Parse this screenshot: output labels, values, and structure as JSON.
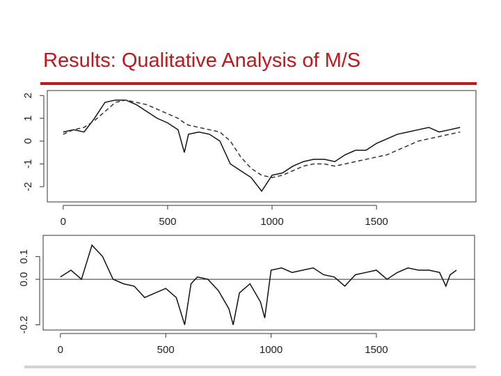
{
  "title": "Results: Qualitative Analysis of M/S",
  "chart_data": [
    {
      "type": "line",
      "x": [
        0,
        50,
        100,
        150,
        200,
        250,
        300,
        350,
        400,
        450,
        500,
        550,
        580,
        600,
        650,
        700,
        750,
        800,
        850,
        900,
        950,
        1000,
        1050,
        1100,
        1150,
        1200,
        1250,
        1300,
        1350,
        1400,
        1450,
        1500,
        1550,
        1600,
        1650,
        1700,
        1750,
        1800,
        1850,
        1900
      ],
      "series": [
        {
          "color": "#111111",
          "style": "solid",
          "values": [
            0.4,
            0.5,
            0.4,
            1.0,
            1.7,
            1.8,
            1.8,
            1.6,
            1.3,
            1.0,
            0.8,
            0.5,
            -0.5,
            0.3,
            0.4,
            0.3,
            0.0,
            -1.0,
            -1.3,
            -1.6,
            -2.2,
            -1.5,
            -1.4,
            -1.1,
            -0.9,
            -0.8,
            -0.8,
            -0.9,
            -0.6,
            -0.4,
            -0.4,
            -0.1,
            0.1,
            0.3,
            0.4,
            0.5,
            0.6,
            0.4,
            0.5,
            0.6
          ]
        },
        {
          "color": "#333333",
          "style": "dashed",
          "values": [
            0.3,
            0.5,
            0.6,
            0.9,
            1.3,
            1.7,
            1.8,
            1.7,
            1.6,
            1.4,
            1.2,
            1.0,
            0.8,
            0.7,
            0.6,
            0.5,
            0.4,
            0.0,
            -0.7,
            -1.2,
            -1.5,
            -1.6,
            -1.5,
            -1.3,
            -1.1,
            -1.0,
            -1.0,
            -1.1,
            -1.0,
            -0.9,
            -0.8,
            -0.7,
            -0.6,
            -0.4,
            -0.2,
            0.0,
            0.1,
            0.2,
            0.3,
            0.4
          ]
        }
      ],
      "xlim": [
        -76,
        1976
      ],
      "xticks": [
        0,
        500,
        1000,
        1500
      ],
      "ylim": [
        -2.67,
        2.22
      ],
      "yticks": [
        -2,
        -1,
        0,
        1,
        2
      ]
    },
    {
      "type": "line",
      "x": [
        0,
        50,
        100,
        150,
        200,
        250,
        300,
        350,
        400,
        450,
        500,
        550,
        590,
        620,
        650,
        700,
        750,
        800,
        820,
        850,
        900,
        950,
        970,
        1000,
        1050,
        1100,
        1150,
        1200,
        1250,
        1300,
        1350,
        1400,
        1450,
        1500,
        1550,
        1600,
        1650,
        1700,
        1750,
        1800,
        1830,
        1850,
        1880
      ],
      "series": [
        {
          "color": "#111111",
          "style": "solid",
          "values": [
            0.01,
            0.04,
            0.0,
            0.15,
            0.1,
            0.0,
            -0.02,
            -0.03,
            -0.08,
            -0.06,
            -0.04,
            -0.08,
            -0.2,
            -0.02,
            0.01,
            0.0,
            -0.05,
            -0.13,
            -0.2,
            -0.06,
            -0.02,
            -0.1,
            -0.17,
            0.04,
            0.05,
            0.03,
            0.04,
            0.05,
            0.02,
            0.01,
            -0.03,
            0.02,
            0.03,
            0.04,
            0.0,
            0.03,
            0.05,
            0.04,
            0.04,
            0.03,
            -0.03,
            0.02,
            0.04
          ]
        }
      ],
      "reference_line": 0,
      "xlim": [
        -82,
        1966
      ],
      "xticks": [
        0,
        500,
        1000,
        1500
      ],
      "ylim": [
        -0.223,
        0.193
      ],
      "yticks": [
        {
          "value": -0.2,
          "label": "-0.2"
        },
        {
          "value": 0,
          "label": "0.0"
        },
        {
          "value": 0.1,
          "label": "0.1"
        }
      ]
    }
  ]
}
